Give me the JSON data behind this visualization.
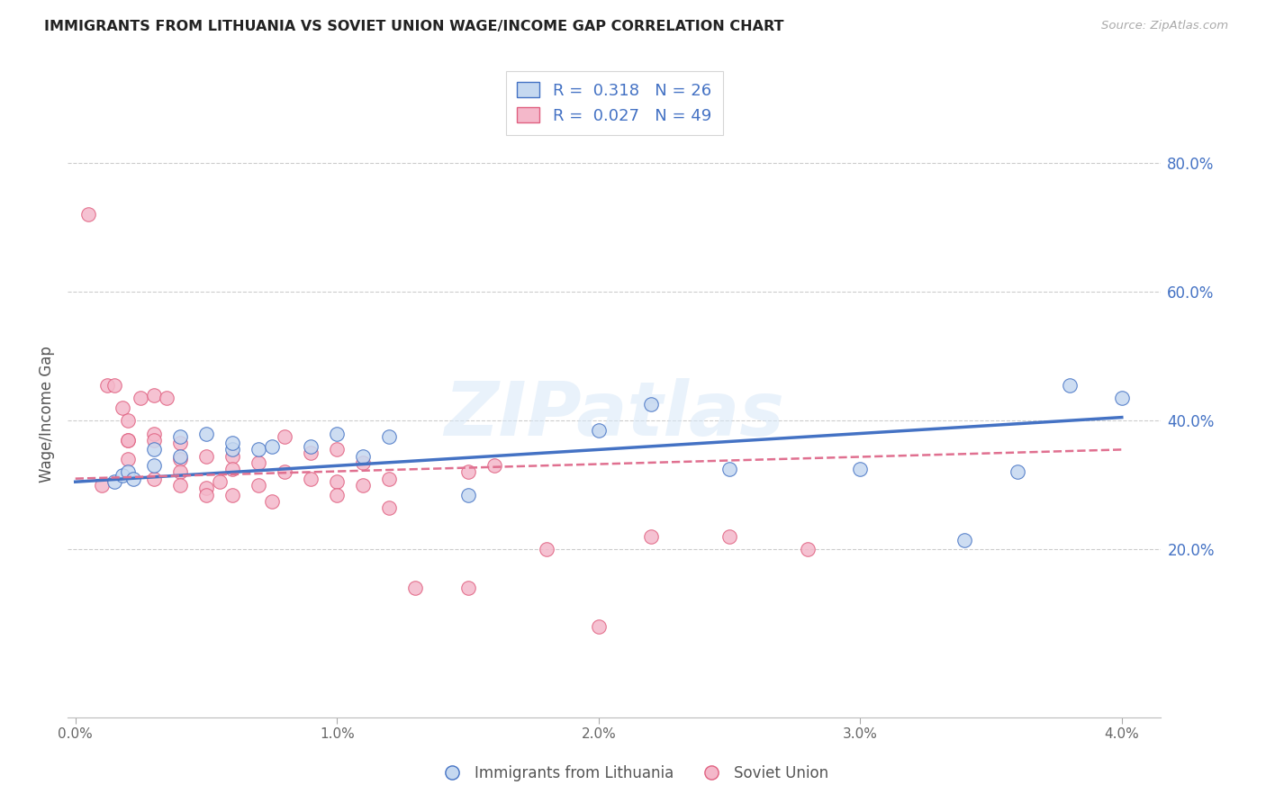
{
  "title": "IMMIGRANTS FROM LITHUANIA VS SOVIET UNION WAGE/INCOME GAP CORRELATION CHART",
  "source": "Source: ZipAtlas.com",
  "ylabel": "Wage/Income Gap",
  "legend_label_blue": "Immigrants from Lithuania",
  "legend_label_pink": "Soviet Union",
  "R_blue": 0.318,
  "N_blue": 26,
  "R_pink": 0.027,
  "N_pink": 49,
  "xlim": [
    -0.0003,
    0.0415
  ],
  "ylim": [
    -0.06,
    0.88
  ],
  "yticks_right": [
    0.2,
    0.4,
    0.6,
    0.8
  ],
  "xticks": [
    0.0,
    0.01,
    0.02,
    0.03,
    0.04
  ],
  "watermark": "ZIPatlas",
  "blue_fill": "#c5d8f0",
  "blue_edge": "#4472c4",
  "pink_fill": "#f4b8ca",
  "pink_edge": "#e06080",
  "line_blue_color": "#4472c4",
  "line_pink_color": "#e07090",
  "blue_x": [
    0.0015,
    0.0018,
    0.002,
    0.0022,
    0.003,
    0.003,
    0.004,
    0.004,
    0.005,
    0.006,
    0.006,
    0.007,
    0.0075,
    0.009,
    0.01,
    0.011,
    0.012,
    0.015,
    0.02,
    0.022,
    0.025,
    0.03,
    0.034,
    0.036,
    0.038,
    0.04
  ],
  "blue_y": [
    0.305,
    0.315,
    0.32,
    0.31,
    0.355,
    0.33,
    0.375,
    0.345,
    0.38,
    0.355,
    0.365,
    0.355,
    0.36,
    0.36,
    0.38,
    0.345,
    0.375,
    0.285,
    0.385,
    0.425,
    0.325,
    0.325,
    0.215,
    0.32,
    0.455,
    0.435
  ],
  "pink_x": [
    0.0005,
    0.001,
    0.0012,
    0.0015,
    0.0018,
    0.002,
    0.002,
    0.002,
    0.0025,
    0.003,
    0.003,
    0.003,
    0.0035,
    0.004,
    0.004,
    0.004,
    0.004,
    0.005,
    0.005,
    0.005,
    0.0055,
    0.006,
    0.006,
    0.006,
    0.007,
    0.007,
    0.0075,
    0.008,
    0.008,
    0.009,
    0.009,
    0.01,
    0.01,
    0.01,
    0.011,
    0.011,
    0.012,
    0.012,
    0.013,
    0.015,
    0.015,
    0.016,
    0.018,
    0.02,
    0.022,
    0.025,
    0.028,
    0.002,
    0.003
  ],
  "pink_y": [
    0.72,
    0.3,
    0.455,
    0.455,
    0.42,
    0.4,
    0.37,
    0.34,
    0.435,
    0.44,
    0.38,
    0.37,
    0.435,
    0.365,
    0.34,
    0.32,
    0.3,
    0.345,
    0.295,
    0.285,
    0.305,
    0.345,
    0.325,
    0.285,
    0.335,
    0.3,
    0.275,
    0.375,
    0.32,
    0.35,
    0.31,
    0.305,
    0.285,
    0.355,
    0.335,
    0.3,
    0.31,
    0.265,
    0.14,
    0.32,
    0.14,
    0.33,
    0.2,
    0.08,
    0.22,
    0.22,
    0.2,
    0.37,
    0.31
  ],
  "blue_trend_x0": 0.0,
  "blue_trend_y0": 0.305,
  "blue_trend_x1": 0.04,
  "blue_trend_y1": 0.405,
  "pink_trend_x0": 0.0,
  "pink_trend_y0": 0.31,
  "pink_trend_x1": 0.04,
  "pink_trend_y1": 0.355
}
